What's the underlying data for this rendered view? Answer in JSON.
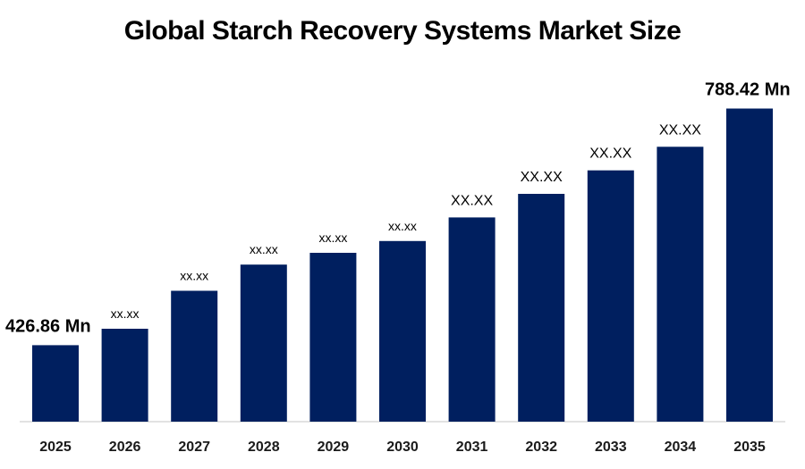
{
  "chart_data": {
    "type": "bar",
    "title": "Global Starch Recovery Systems Market Size",
    "categories": [
      "2025",
      "2026",
      "2027",
      "2028",
      "2029",
      "2030",
      "2031",
      "2032",
      "2033",
      "2034",
      "2035"
    ],
    "values": [
      426.86,
      452,
      510,
      550,
      568,
      586,
      622,
      658,
      694,
      730,
      788.42
    ],
    "data_labels": [
      "426.86 Mn",
      "xx.xx",
      "xx.xx",
      "xx.xx",
      "xx.xx",
      "xx.xx",
      "XX.XX",
      "XX.XX",
      "XX.XX",
      "XX.XX",
      "788.42 Mn"
    ],
    "bar_color": "#001f5f",
    "axis_color": "#d9d9d9",
    "ylim": [
      310,
      800
    ],
    "grid": false,
    "legend": "none",
    "xlabel": "",
    "ylabel": ""
  }
}
